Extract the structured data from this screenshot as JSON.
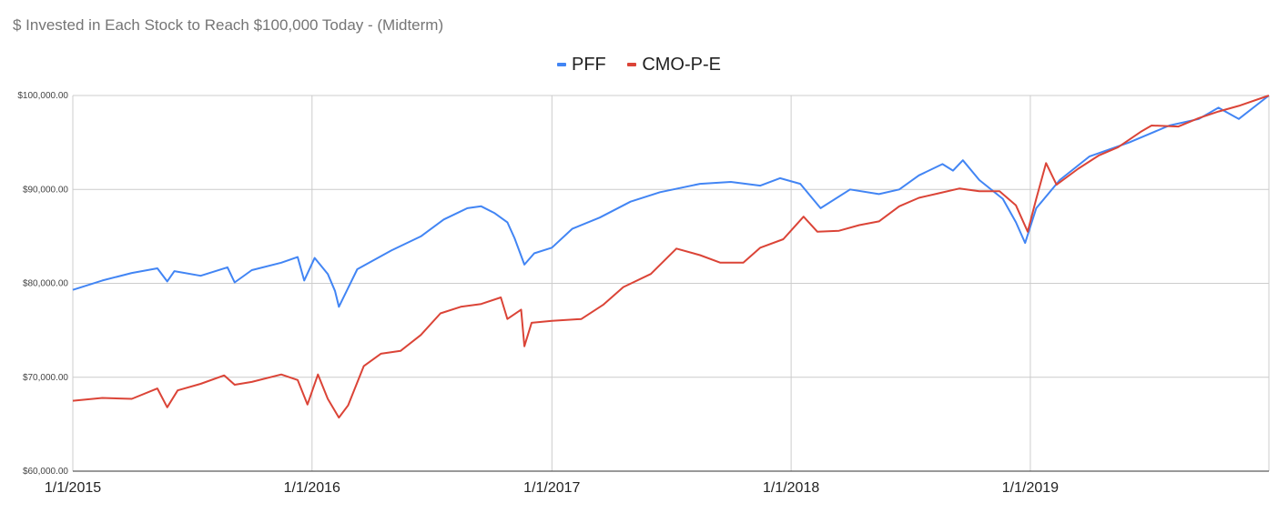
{
  "chart_data": {
    "type": "line",
    "title": "$ Invested in Each Stock to Reach $100,000 Today - (Midterm)",
    "xlabel": "",
    "ylabel": "",
    "ylim": [
      60000,
      100000
    ],
    "yticks": [
      60000,
      70000,
      80000,
      90000,
      100000
    ],
    "ytick_labels": [
      "$60,000.00",
      "$70,000.00",
      "$80,000.00",
      "$90,000.00",
      "$100,000.00"
    ],
    "xlim": [
      "2015-01-01",
      "2019-12-31"
    ],
    "xticks": [
      "2015-01-01",
      "2016-01-01",
      "2017-01-01",
      "2018-01-01",
      "2019-01-01"
    ],
    "xtick_labels": [
      "1/1/2015",
      "1/1/2016",
      "1/1/2017",
      "1/1/2018",
      "1/1/2019"
    ],
    "grid": true,
    "legend_position": "top-center",
    "series": [
      {
        "name": "PFF",
        "color": "#4285f4",
        "points": [
          [
            "2015-01-01",
            79300
          ],
          [
            "2015-02-15",
            80300
          ],
          [
            "2015-04-01",
            81100
          ],
          [
            "2015-05-10",
            81600
          ],
          [
            "2015-05-25",
            80200
          ],
          [
            "2015-06-05",
            81300
          ],
          [
            "2015-07-15",
            80800
          ],
          [
            "2015-08-25",
            81700
          ],
          [
            "2015-09-05",
            80100
          ],
          [
            "2015-10-01",
            81400
          ],
          [
            "2015-11-15",
            82200
          ],
          [
            "2015-12-10",
            82800
          ],
          [
            "2015-12-20",
            80300
          ],
          [
            "2016-01-05",
            82700
          ],
          [
            "2016-01-25",
            81000
          ],
          [
            "2016-02-05",
            79200
          ],
          [
            "2016-02-11",
            77500
          ],
          [
            "2016-03-10",
            81500
          ],
          [
            "2016-05-01",
            83500
          ],
          [
            "2016-06-15",
            85000
          ],
          [
            "2016-07-20",
            86800
          ],
          [
            "2016-08-25",
            88000
          ],
          [
            "2016-09-15",
            88200
          ],
          [
            "2016-10-05",
            87500
          ],
          [
            "2016-10-25",
            86500
          ],
          [
            "2016-11-05",
            84800
          ],
          [
            "2016-11-20",
            82000
          ],
          [
            "2016-12-05",
            83200
          ],
          [
            "2017-01-01",
            83800
          ],
          [
            "2017-02-01",
            85800
          ],
          [
            "2017-03-15",
            87000
          ],
          [
            "2017-05-01",
            88700
          ],
          [
            "2017-06-15",
            89700
          ],
          [
            "2017-08-15",
            90600
          ],
          [
            "2017-10-01",
            90800
          ],
          [
            "2017-11-15",
            90400
          ],
          [
            "2017-12-15",
            91200
          ],
          [
            "2018-01-15",
            90600
          ],
          [
            "2018-02-15",
            88000
          ],
          [
            "2018-04-01",
            90000
          ],
          [
            "2018-05-15",
            89500
          ],
          [
            "2018-06-15",
            90000
          ],
          [
            "2018-07-15",
            91500
          ],
          [
            "2018-08-20",
            92700
          ],
          [
            "2018-09-05",
            92000
          ],
          [
            "2018-09-20",
            93100
          ],
          [
            "2018-10-15",
            91000
          ],
          [
            "2018-11-20",
            89000
          ],
          [
            "2018-12-10",
            86500
          ],
          [
            "2018-12-24",
            84300
          ],
          [
            "2019-01-10",
            88000
          ],
          [
            "2019-02-15",
            91000
          ],
          [
            "2019-04-01",
            93500
          ],
          [
            "2019-06-01",
            95000
          ],
          [
            "2019-08-01",
            96800
          ],
          [
            "2019-09-15",
            97500
          ],
          [
            "2019-10-15",
            98700
          ],
          [
            "2019-11-15",
            97500
          ],
          [
            "2019-12-31",
            100000
          ]
        ]
      },
      {
        "name": "CMO-P-E",
        "color": "#db4437",
        "points": [
          [
            "2015-01-01",
            67500
          ],
          [
            "2015-02-15",
            67800
          ],
          [
            "2015-04-01",
            67700
          ],
          [
            "2015-05-10",
            68800
          ],
          [
            "2015-05-25",
            66800
          ],
          [
            "2015-06-10",
            68600
          ],
          [
            "2015-07-15",
            69300
          ],
          [
            "2015-08-20",
            70200
          ],
          [
            "2015-09-05",
            69200
          ],
          [
            "2015-10-01",
            69500
          ],
          [
            "2015-11-15",
            70300
          ],
          [
            "2015-12-10",
            69700
          ],
          [
            "2015-12-25",
            67100
          ],
          [
            "2016-01-10",
            70300
          ],
          [
            "2016-01-25",
            67700
          ],
          [
            "2016-02-11",
            65700
          ],
          [
            "2016-02-25",
            67000
          ],
          [
            "2016-03-20",
            71200
          ],
          [
            "2016-04-15",
            72500
          ],
          [
            "2016-05-15",
            72800
          ],
          [
            "2016-06-15",
            74500
          ],
          [
            "2016-07-15",
            76800
          ],
          [
            "2016-08-15",
            77500
          ],
          [
            "2016-09-15",
            77800
          ],
          [
            "2016-10-15",
            78500
          ],
          [
            "2016-10-25",
            76200
          ],
          [
            "2016-11-15",
            77200
          ],
          [
            "2016-11-20",
            73300
          ],
          [
            "2016-12-01",
            75800
          ],
          [
            "2017-01-01",
            76000
          ],
          [
            "2017-02-15",
            76200
          ],
          [
            "2017-03-20",
            77700
          ],
          [
            "2017-04-20",
            79600
          ],
          [
            "2017-06-01",
            81000
          ],
          [
            "2017-07-10",
            83700
          ],
          [
            "2017-08-15",
            83000
          ],
          [
            "2017-09-15",
            82200
          ],
          [
            "2017-10-20",
            82200
          ],
          [
            "2017-11-15",
            83800
          ],
          [
            "2017-12-20",
            84700
          ],
          [
            "2018-01-20",
            87100
          ],
          [
            "2018-02-10",
            85500
          ],
          [
            "2018-03-15",
            85600
          ],
          [
            "2018-04-15",
            86200
          ],
          [
            "2018-05-15",
            86600
          ],
          [
            "2018-06-15",
            88200
          ],
          [
            "2018-07-15",
            89100
          ],
          [
            "2018-08-15",
            89600
          ],
          [
            "2018-09-15",
            90100
          ],
          [
            "2018-10-15",
            89800
          ],
          [
            "2018-11-15",
            89800
          ],
          [
            "2018-12-10",
            88300
          ],
          [
            "2018-12-28",
            85500
          ],
          [
            "2019-01-10",
            89000
          ],
          [
            "2019-01-25",
            92800
          ],
          [
            "2019-02-10",
            90500
          ],
          [
            "2019-03-15",
            92200
          ],
          [
            "2019-04-15",
            93600
          ],
          [
            "2019-05-15",
            94500
          ],
          [
            "2019-06-20",
            96200
          ],
          [
            "2019-07-05",
            96800
          ],
          [
            "2019-08-15",
            96700
          ],
          [
            "2019-09-15",
            97600
          ],
          [
            "2019-10-15",
            98300
          ],
          [
            "2019-11-15",
            98900
          ],
          [
            "2019-12-31",
            100000
          ]
        ]
      }
    ]
  }
}
